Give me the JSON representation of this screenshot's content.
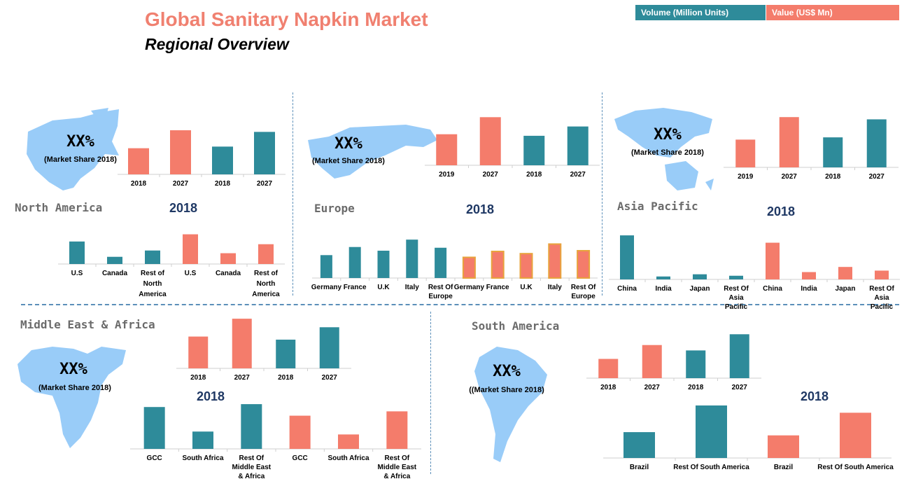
{
  "header": {
    "title": "Global Sanitary Napkin Market",
    "subtitle": "Regional Overview"
  },
  "legend": {
    "volume": "Volume (Million Units)",
    "value": "Value (US$ Mn)"
  },
  "colors": {
    "volume": "#2e8b9a",
    "value": "#f47c6b",
    "value_outline": "#e8a33c",
    "map": "#99ccf8",
    "divider": "#5b8fb9",
    "title": "#f08070",
    "year_head": "#1f3864"
  },
  "regions": {
    "north_america": {
      "label": "North America",
      "year": "2018",
      "share_big": "XX%",
      "share_small": "(Market Share 2018)"
    },
    "europe": {
      "label": "Europe",
      "year": "2018",
      "share_big": "XX%",
      "share_small": "(Market Share 2018)"
    },
    "asia_pacific": {
      "label": "Asia Pacific",
      "year": "2018",
      "share_big": "XX%",
      "share_small": "(Market Share 2018)"
    },
    "mea": {
      "label": "Middle East & Africa",
      "year": "2018",
      "share_big": "XX%",
      "share_small": "(Market Share 2018)"
    },
    "south_america": {
      "label": "South America",
      "year": "2018",
      "share_big": "XX%",
      "share_small": "((Market Share 2018)"
    }
  },
  "chart_data": [
    {
      "id": "na-trend",
      "type": "bar",
      "region": "North America",
      "categories": [
        "2018",
        "2027",
        "2018",
        "2027"
      ],
      "series_of": [
        "value",
        "value",
        "volume",
        "volume"
      ],
      "values": [
        32,
        54,
        34,
        52
      ],
      "ylim": [
        0,
        60
      ]
    },
    {
      "id": "na-country",
      "type": "bar",
      "region": "North America",
      "categories": [
        "U.S",
        "Canada",
        "Rest of North America",
        "U.S",
        "Canada",
        "Rest of North America"
      ],
      "series_of": [
        "volume",
        "volume",
        "volume",
        "value",
        "value",
        "value"
      ],
      "values": [
        25,
        8,
        15,
        33,
        12,
        22
      ],
      "ylim": [
        0,
        35
      ]
    },
    {
      "id": "eu-trend",
      "type": "bar",
      "region": "Europe",
      "categories": [
        "2019",
        "2027",
        "2018",
        "2027"
      ],
      "series_of": [
        "value",
        "value",
        "volume",
        "volume"
      ],
      "values": [
        40,
        62,
        38,
        50
      ],
      "ylim": [
        0,
        65
      ]
    },
    {
      "id": "eu-country",
      "type": "bar",
      "region": "Europe",
      "categories": [
        "Germany",
        "France",
        "U.K",
        "Italy",
        "Rest Of Europe",
        "Germany",
        "France",
        "U.K",
        "Italy",
        "Rest Of Europe"
      ],
      "series_of": [
        "volume",
        "volume",
        "volume",
        "volume",
        "volume",
        "value",
        "value",
        "value",
        "value",
        "value"
      ],
      "values": [
        31,
        42,
        37,
        52,
        41,
        28,
        36,
        33,
        46,
        37
      ],
      "ylim": [
        0,
        55
      ]
    },
    {
      "id": "ap-trend",
      "type": "bar",
      "region": "Asia Pacific",
      "categories": [
        "2019",
        "2027",
        "2018",
        "2027"
      ],
      "series_of": [
        "value",
        "value",
        "volume",
        "volume"
      ],
      "values": [
        37,
        67,
        40,
        64
      ],
      "ylim": [
        0,
        70
      ]
    },
    {
      "id": "ap-country",
      "type": "bar",
      "region": "Asia Pacific",
      "categories": [
        "China",
        "India",
        "Japan",
        "Rest Of Asia Pacific",
        "China",
        "India",
        "Japan",
        "Rest Of Asia Pacific"
      ],
      "series_of": [
        "volume",
        "volume",
        "volume",
        "volume",
        "value",
        "value",
        "value",
        "value"
      ],
      "values": [
        60,
        4,
        7,
        5,
        50,
        10,
        17,
        12
      ],
      "ylim": [
        0,
        62
      ]
    },
    {
      "id": "mea-trend",
      "type": "bar",
      "region": "Middle East & Africa",
      "categories": [
        "2018",
        "2027",
        "2018",
        "2027"
      ],
      "series_of": [
        "value",
        "value",
        "volume",
        "volume"
      ],
      "values": [
        41,
        64,
        37,
        53
      ],
      "ylim": [
        0,
        65
      ]
    },
    {
      "id": "mea-country",
      "type": "bar",
      "region": "Middle East & Africa",
      "categories": [
        "GCC",
        "South Africa",
        "Rest Of Middle East & Africa",
        "GCC",
        "South Africa",
        "Rest Of Middle East & Africa"
      ],
      "series_of": [
        "volume",
        "volume",
        "volume",
        "value",
        "value",
        "value"
      ],
      "values": [
        58,
        24,
        62,
        46,
        20,
        52
      ],
      "ylim": [
        0,
        65
      ]
    },
    {
      "id": "sa-trend",
      "type": "bar",
      "region": "South America",
      "categories": [
        "2018",
        "2027",
        "2018",
        "2027"
      ],
      "series_of": [
        "value",
        "value",
        "volume",
        "volume"
      ],
      "values": [
        25,
        43,
        36,
        57
      ],
      "ylim": [
        0,
        60
      ]
    },
    {
      "id": "sa-country",
      "type": "bar",
      "region": "South America",
      "categories": [
        "Brazil",
        "Rest Of South America",
        "Brazil",
        "Rest Of South America"
      ],
      "series_of": [
        "volume",
        "volume",
        "value",
        "value"
      ],
      "values": [
        32,
        65,
        28,
        56
      ],
      "ylim": [
        0,
        65
      ]
    }
  ]
}
